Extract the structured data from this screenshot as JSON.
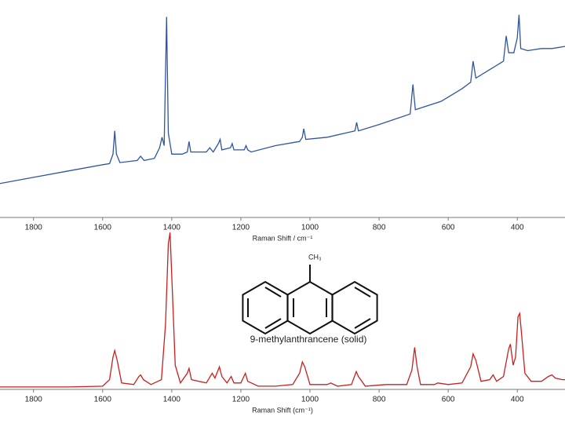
{
  "chart_data": [
    {
      "type": "line",
      "xlabel": "Raman Shift / cm⁻¹",
      "xlim": [
        1897,
        262
      ],
      "ylim": [
        0,
        100
      ],
      "xticks": [
        1800,
        1600,
        1400,
        1200,
        1000,
        800,
        600,
        400
      ],
      "color": "#2f55a0",
      "x": [
        1900,
        1800,
        1700,
        1600,
        1580,
        1570,
        1565,
        1560,
        1550,
        1500,
        1490,
        1480,
        1450,
        1435,
        1428,
        1422,
        1415,
        1410,
        1400,
        1370,
        1355,
        1350,
        1345,
        1300,
        1290,
        1280,
        1265,
        1260,
        1255,
        1230,
        1225,
        1220,
        1190,
        1185,
        1180,
        1170,
        1100,
        1030,
        1022,
        1018,
        1012,
        950,
        870,
        865,
        860,
        800,
        710,
        702,
        695,
        620,
        580,
        560,
        535,
        528,
        520,
        480,
        440,
        432,
        425,
        410,
        400,
        395,
        390,
        370,
        330,
        300,
        262
      ],
      "values": [
        16,
        19,
        22,
        25,
        25.5,
        30,
        41,
        30,
        26,
        27,
        29,
        27,
        28,
        33,
        38,
        34,
        95,
        40,
        30,
        30,
        31,
        36,
        31,
        31,
        33,
        31,
        35,
        37,
        32,
        33,
        35,
        32,
        32,
        34,
        32,
        31,
        34,
        36,
        38,
        42,
        37,
        38,
        41,
        45,
        41,
        44,
        49,
        63,
        51,
        55,
        59,
        61,
        64,
        74,
        66,
        70,
        74,
        86,
        78,
        78,
        85,
        96,
        80,
        79,
        80,
        80,
        81
      ]
    },
    {
      "type": "line",
      "xlabel": "Raman Shift (cm⁻¹)",
      "xlim": [
        1897,
        262
      ],
      "ylim": [
        0,
        100
      ],
      "xticks": [
        1800,
        1600,
        1400,
        1200,
        1000,
        800,
        600,
        400
      ],
      "color": "#c8201e",
      "annotations": [
        "CH₃",
        "9-methylanthrancene (solid)"
      ],
      "x": [
        1900,
        1700,
        1600,
        1580,
        1570,
        1565,
        1558,
        1545,
        1510,
        1495,
        1490,
        1482,
        1460,
        1430,
        1418,
        1410,
        1405,
        1398,
        1390,
        1375,
        1355,
        1350,
        1343,
        1300,
        1283,
        1275,
        1262,
        1255,
        1240,
        1228,
        1220,
        1200,
        1187,
        1180,
        1150,
        1100,
        1050,
        1030,
        1022,
        1015,
        1000,
        950,
        940,
        920,
        880,
        866,
        860,
        840,
        780,
        720,
        705,
        697,
        690,
        680,
        640,
        630,
        600,
        560,
        535,
        528,
        520,
        505,
        480,
        470,
        460,
        440,
        425,
        420,
        412,
        405,
        398,
        393,
        388,
        378,
        360,
        330,
        310,
        300,
        290,
        270,
        262
      ],
      "values": [
        1.5,
        1.5,
        2,
        6,
        20,
        24,
        18,
        4,
        3,
        8,
        9,
        6,
        3,
        6,
        40,
        90,
        97,
        60,
        15,
        4,
        10,
        13,
        6,
        4,
        10,
        7,
        14,
        8,
        4,
        8,
        4,
        4,
        10,
        5,
        2,
        2,
        3,
        10,
        17,
        14,
        3,
        3,
        4,
        2,
        3,
        11,
        8,
        2,
        3,
        3,
        12,
        26,
        14,
        3,
        3,
        4,
        3,
        4,
        14,
        22,
        18,
        5,
        6,
        9,
        5,
        8,
        25,
        28,
        15,
        20,
        45,
        47,
        35,
        10,
        5,
        5,
        8,
        9,
        7,
        6,
        6
      ]
    }
  ]
}
